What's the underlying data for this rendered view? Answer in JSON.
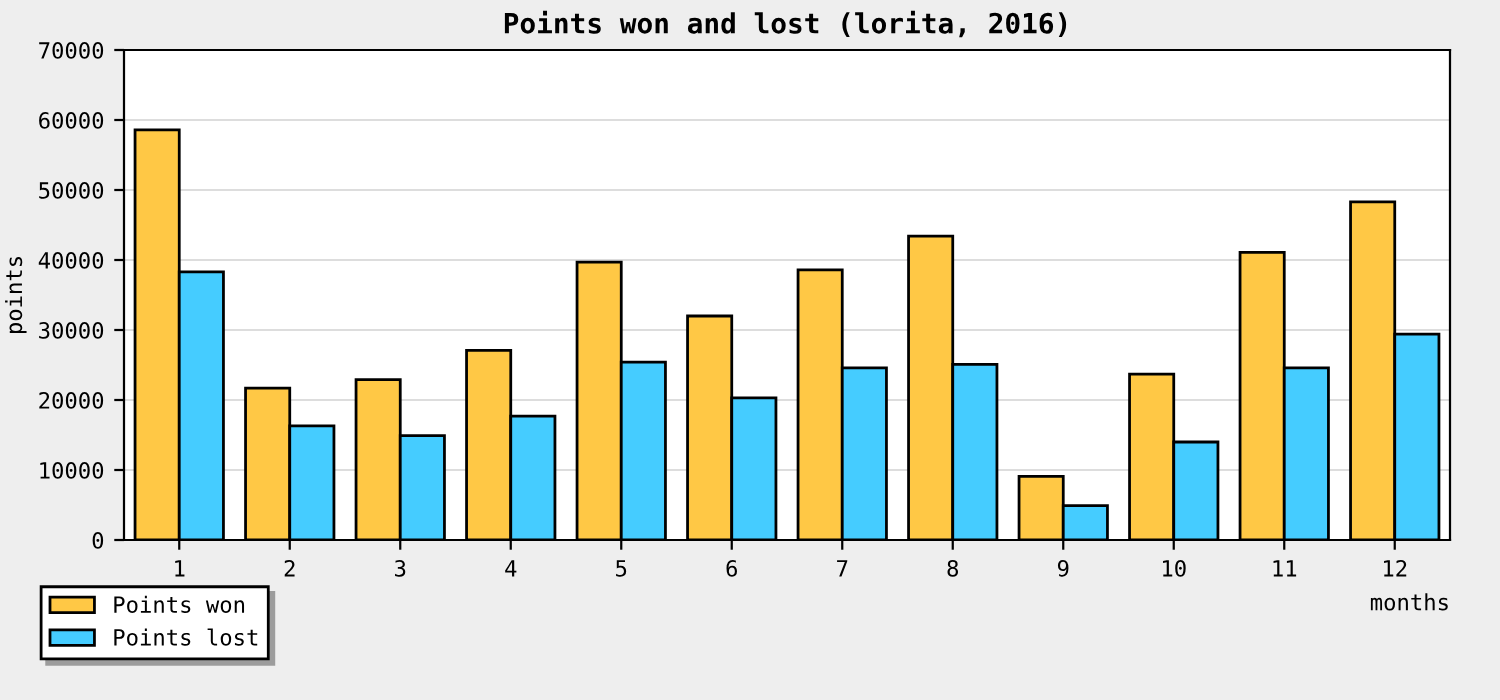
{
  "chart_data": {
    "type": "bar",
    "title": "Points won and lost (lorita, 2016)",
    "xlabel": "months",
    "ylabel": "points",
    "categories": [
      "1",
      "2",
      "3",
      "4",
      "5",
      "6",
      "7",
      "8",
      "9",
      "10",
      "11",
      "12"
    ],
    "series": [
      {
        "name": "Points won",
        "color": "#ffc845",
        "values": [
          58600,
          21700,
          22900,
          27100,
          39700,
          32000,
          38600,
          43400,
          9100,
          23700,
          41100,
          48300
        ]
      },
      {
        "name": "Points lost",
        "color": "#45ccff",
        "values": [
          38300,
          16300,
          14900,
          17700,
          25400,
          20300,
          24600,
          25100,
          4900,
          14000,
          24600,
          29400
        ]
      }
    ],
    "ylim": [
      0,
      70000
    ],
    "yticks": [
      0,
      10000,
      20000,
      30000,
      40000,
      50000,
      60000,
      70000
    ],
    "grid": "y",
    "legend": "bottom left"
  }
}
